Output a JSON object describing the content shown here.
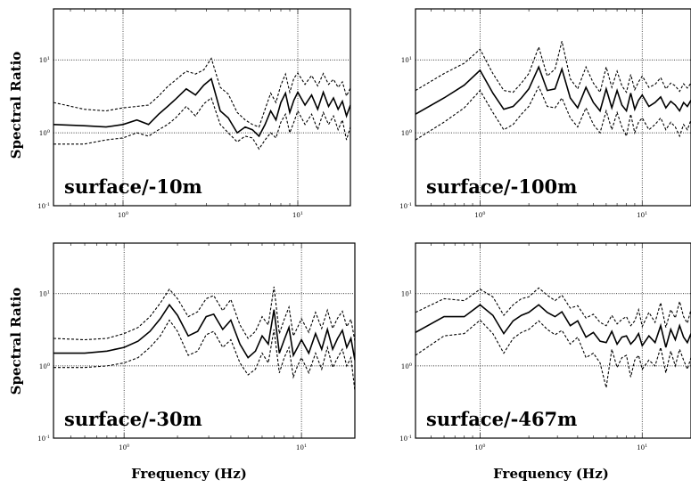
{
  "figure": {
    "ylabel_top": "Spectral Ratio",
    "ylabel_bottom": "Spectral Ratio",
    "xlabel_left": "Frequency (Hz)",
    "xlabel_right": "Frequency (Hz)"
  },
  "chart_data": [
    {
      "type": "line",
      "title": "surface/-10m",
      "xlabel": "",
      "ylabel": "Spectral Ratio",
      "xscale": "log",
      "yscale": "log",
      "xlim": [
        0.4,
        20
      ],
      "ylim": [
        0.1,
        50
      ],
      "xticks": [
        "10^0",
        "10^1"
      ],
      "yticks": [
        "10^-1",
        "10^0",
        "10^1"
      ],
      "grid": true,
      "x": [
        0.4,
        0.6,
        0.8,
        1.0,
        1.2,
        1.4,
        1.6,
        1.8,
        2.0,
        2.3,
        2.6,
        2.9,
        3.2,
        3.6,
        4.0,
        4.5,
        5.0,
        5.5,
        6.0,
        6.5,
        7.0,
        7.5,
        8.0,
        8.5,
        9.0,
        9.5,
        10,
        11,
        12,
        13,
        14,
        15,
        16,
        17,
        18,
        19,
        20
      ],
      "series": [
        {
          "values": [
            1.3,
            1.25,
            1.2,
            1.3,
            1.5,
            1.3,
            1.8,
            2.3,
            2.9,
            4.0,
            3.3,
            4.5,
            5.5,
            2.0,
            1.6,
            1.0,
            1.2,
            1.1,
            0.9,
            1.3,
            2.0,
            1.5,
            2.6,
            3.5,
            1.9,
            2.8,
            3.6,
            2.4,
            3.3,
            2.1,
            3.6,
            2.3,
            3.0,
            2.1,
            2.7,
            1.7,
            2.4
          ]
        },
        {
          "values": [
            2.6,
            2.1,
            2.0,
            2.2,
            2.3,
            2.4,
            3.2,
            4.3,
            5.3,
            7.0,
            6.4,
            7.3,
            10.5,
            4.2,
            3.4,
            1.9,
            1.5,
            1.3,
            1.2,
            2.1,
            3.5,
            2.6,
            4.5,
            6.4,
            3.6,
            5.6,
            6.6,
            4.6,
            6.1,
            4.4,
            6.5,
            4.6,
            5.4,
            4.2,
            5.0,
            3.2,
            4.1
          ]
        },
        {
          "values": [
            0.7,
            0.7,
            0.8,
            0.85,
            1.0,
            0.9,
            1.1,
            1.3,
            1.6,
            2.3,
            1.7,
            2.5,
            3.0,
            1.3,
            1.0,
            0.75,
            0.9,
            0.85,
            0.6,
            0.8,
            1.0,
            0.85,
            1.4,
            1.8,
            1.0,
            1.4,
            2.0,
            1.3,
            1.8,
            1.1,
            1.9,
            1.3,
            1.7,
            1.1,
            1.5,
            0.8,
            1.2
          ]
        }
      ]
    },
    {
      "type": "line",
      "title": "surface/-100m",
      "xlabel": "",
      "ylabel": "",
      "xscale": "log",
      "yscale": "log",
      "xlim": [
        0.4,
        20
      ],
      "ylim": [
        0.1,
        50
      ],
      "xticks": [
        "10^0",
        "10^1"
      ],
      "yticks": [
        "10^-1",
        "10^0",
        "10^1"
      ],
      "grid": true,
      "x": [
        0.4,
        0.6,
        0.8,
        1.0,
        1.2,
        1.4,
        1.6,
        1.8,
        2.0,
        2.3,
        2.6,
        2.9,
        3.2,
        3.6,
        4.0,
        4.5,
        5.0,
        5.5,
        6.0,
        6.5,
        7.0,
        7.5,
        8.0,
        8.5,
        9.0,
        9.5,
        10,
        11,
        12,
        13,
        14,
        15,
        16,
        17,
        18,
        19,
        20
      ],
      "series": [
        {
          "values": [
            1.8,
            3.0,
            4.5,
            7.2,
            3.5,
            2.1,
            2.3,
            3.0,
            4.0,
            8.0,
            3.8,
            4.0,
            7.5,
            3.0,
            2.2,
            4.2,
            2.6,
            2.0,
            4.0,
            2.2,
            3.8,
            2.4,
            2.0,
            3.5,
            2.1,
            2.8,
            3.3,
            2.3,
            2.6,
            3.1,
            2.2,
            2.7,
            2.4,
            2.0,
            2.6,
            2.3,
            2.8
          ]
        },
        {
          "values": [
            3.8,
            6.5,
            9.0,
            14.0,
            6.5,
            3.8,
            3.6,
            4.8,
            6.5,
            15.0,
            6.0,
            7.5,
            18.0,
            5.5,
            4.0,
            8.0,
            4.8,
            3.6,
            8.0,
            4.2,
            7.0,
            4.4,
            3.6,
            6.3,
            3.9,
            5.0,
            6.0,
            4.2,
            4.6,
            5.7,
            4.0,
            4.8,
            4.4,
            3.7,
            4.7,
            4.1,
            4.8
          ]
        },
        {
          "values": [
            0.8,
            1.4,
            2.2,
            3.8,
            1.9,
            1.1,
            1.3,
            1.8,
            2.3,
            4.3,
            2.3,
            2.2,
            3.0,
            1.6,
            1.2,
            2.2,
            1.3,
            1.0,
            2.0,
            1.1,
            1.9,
            1.2,
            0.9,
            1.8,
            1.0,
            1.4,
            1.6,
            1.1,
            1.3,
            1.6,
            1.1,
            1.4,
            1.2,
            0.9,
            1.3,
            1.1,
            1.5
          ]
        }
      ]
    },
    {
      "type": "line",
      "title": "surface/-30m",
      "xlabel": "Frequency (Hz)",
      "ylabel": "Spectral Ratio",
      "xscale": "log",
      "yscale": "log",
      "xlim": [
        0.4,
        20
      ],
      "ylim": [
        0.1,
        50
      ],
      "xticks": [
        "10^0",
        "10^1"
      ],
      "yticks": [
        "10^-1",
        "10^0",
        "10^1"
      ],
      "grid": true,
      "x": [
        0.4,
        0.6,
        0.8,
        1.0,
        1.2,
        1.4,
        1.6,
        1.8,
        2.0,
        2.3,
        2.6,
        2.9,
        3.2,
        3.6,
        4.0,
        4.5,
        5.0,
        5.5,
        6.0,
        6.5,
        7.0,
        7.5,
        8.0,
        8.5,
        9.0,
        9.5,
        10,
        11,
        12,
        13,
        14,
        15,
        16,
        17,
        18,
        19,
        20
      ],
      "series": [
        {
          "values": [
            1.5,
            1.5,
            1.6,
            1.8,
            2.2,
            3.0,
            4.5,
            7.0,
            5.0,
            2.6,
            3.0,
            4.8,
            5.2,
            3.2,
            4.3,
            2.0,
            1.3,
            1.6,
            2.6,
            2.0,
            6.0,
            1.5,
            2.3,
            3.4,
            1.4,
            1.8,
            2.3,
            1.5,
            2.8,
            1.7,
            3.2,
            1.7,
            2.4,
            3.1,
            1.8,
            2.4,
            1.2
          ]
        },
        {
          "values": [
            2.4,
            2.3,
            2.4,
            2.8,
            3.4,
            4.8,
            7.4,
            11.5,
            8.5,
            4.8,
            5.6,
            8.5,
            9.4,
            5.8,
            8.3,
            3.7,
            2.4,
            3.0,
            4.8,
            3.7,
            12.5,
            2.8,
            4.4,
            6.5,
            2.6,
            3.4,
            4.5,
            2.9,
            5.5,
            3.3,
            5.9,
            3.3,
            4.6,
            5.7,
            3.5,
            4.4,
            2.2
          ]
        },
        {
          "values": [
            0.95,
            0.95,
            1.0,
            1.1,
            1.3,
            1.8,
            2.6,
            4.3,
            3.0,
            1.4,
            1.6,
            2.7,
            3.0,
            1.8,
            2.3,
            1.1,
            0.75,
            0.9,
            1.5,
            1.1,
            3.2,
            0.8,
            1.3,
            1.8,
            0.7,
            1.0,
            1.3,
            0.8,
            1.5,
            0.9,
            1.8,
            0.95,
            1.3,
            1.7,
            1.0,
            1.3,
            0.45
          ]
        }
      ]
    },
    {
      "type": "line",
      "title": "surface/-467m",
      "xlabel": "Frequency (Hz)",
      "ylabel": "",
      "xscale": "log",
      "yscale": "log",
      "xlim": [
        0.4,
        20
      ],
      "ylim": [
        0.1,
        50
      ],
      "xticks": [
        "10^0",
        "10^1"
      ],
      "yticks": [
        "10^-1",
        "10^0",
        "10^1"
      ],
      "grid": true,
      "x": [
        0.4,
        0.6,
        0.8,
        1.0,
        1.2,
        1.4,
        1.6,
        1.8,
        2.0,
        2.3,
        2.6,
        2.9,
        3.2,
        3.6,
        4.0,
        4.5,
        5.0,
        5.5,
        6.0,
        6.5,
        7.0,
        7.5,
        8.0,
        8.5,
        9.0,
        9.5,
        10,
        11,
        12,
        13,
        14,
        15,
        16,
        17,
        18,
        19,
        20
      ],
      "series": [
        {
          "values": [
            2.9,
            4.8,
            4.8,
            7.0,
            5.0,
            2.8,
            4.2,
            5.0,
            5.5,
            7.0,
            5.5,
            4.8,
            5.6,
            3.6,
            4.2,
            2.5,
            2.9,
            2.2,
            2.1,
            3.0,
            2.0,
            2.5,
            2.6,
            2.0,
            2.3,
            2.8,
            1.9,
            2.6,
            2.1,
            3.6,
            1.8,
            3.2,
            2.3,
            3.6,
            2.5,
            2.1,
            2.8
          ]
        },
        {
          "values": [
            5.5,
            8.5,
            8.0,
            11.5,
            9.0,
            5.0,
            7.0,
            8.5,
            9.0,
            12.0,
            9.5,
            8.0,
            9.5,
            6.3,
            6.8,
            4.6,
            5.2,
            4.0,
            3.6,
            5.0,
            3.8,
            4.4,
            4.8,
            3.6,
            4.2,
            6.0,
            3.5,
            5.5,
            4.0,
            7.5,
            3.4,
            6.0,
            4.6,
            7.8,
            4.8,
            3.9,
            6.0
          ]
        },
        {
          "values": [
            1.4,
            2.6,
            2.8,
            4.3,
            2.8,
            1.5,
            2.4,
            2.9,
            3.2,
            4.2,
            3.2,
            2.7,
            3.1,
            2.0,
            2.5,
            1.3,
            1.5,
            1.1,
            0.5,
            1.7,
            0.95,
            1.3,
            1.4,
            0.7,
            1.2,
            1.4,
            0.9,
            1.2,
            1.0,
            1.8,
            0.8,
            1.6,
            1.0,
            1.7,
            1.2,
            0.9,
            1.3
          ]
        }
      ]
    }
  ]
}
